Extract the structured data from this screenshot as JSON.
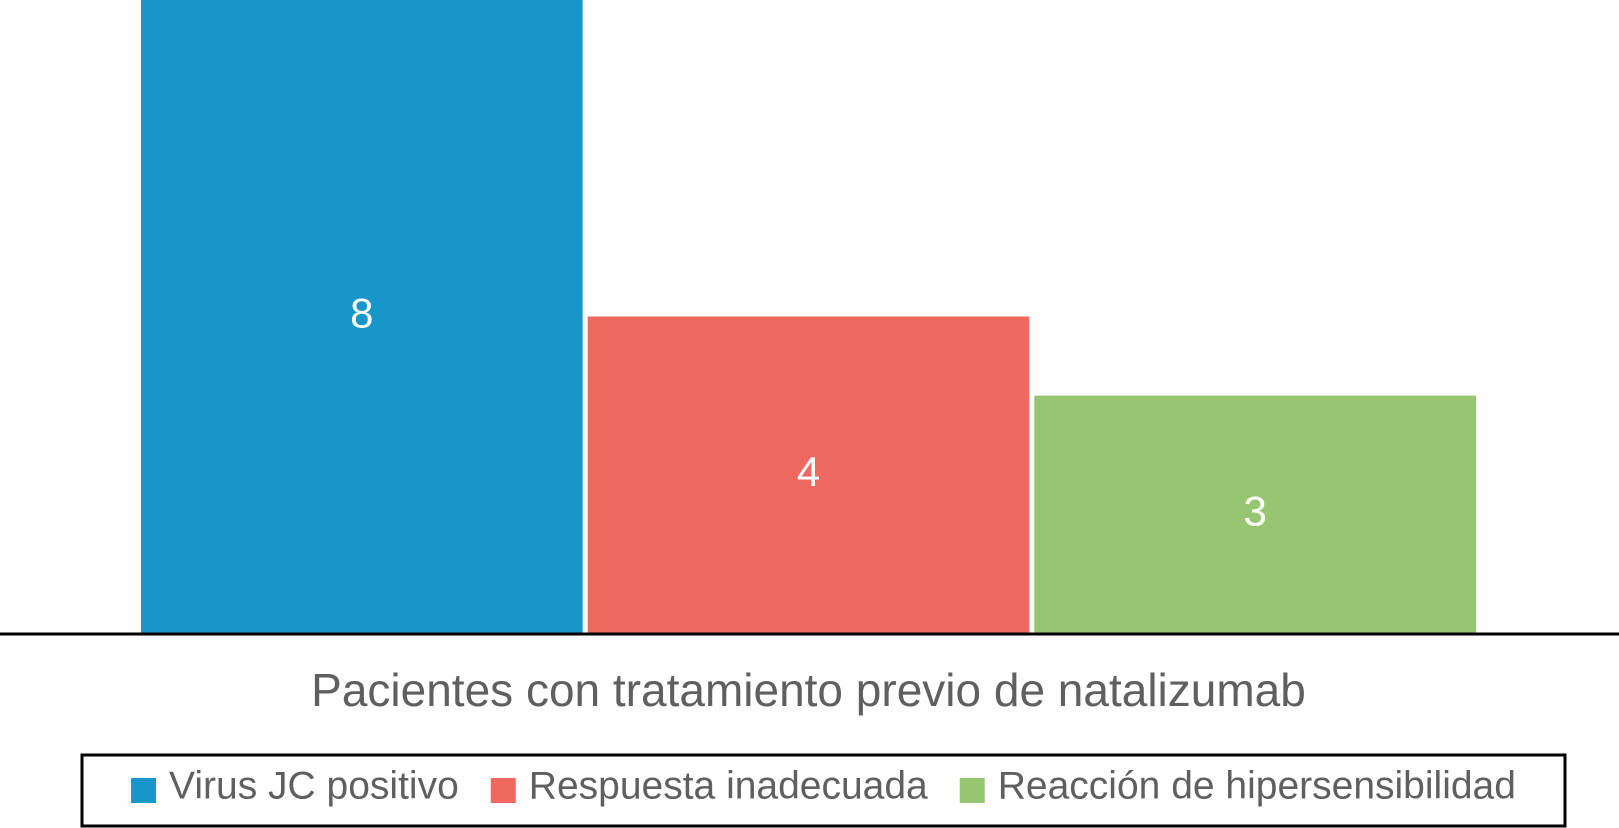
{
  "chart_data": {
    "type": "bar",
    "categories": [
      "Pacientes con tratamiento previo de natalizumab"
    ],
    "series": [
      {
        "name": "Virus JC positivo",
        "color": "#1797c9",
        "values": [
          8
        ]
      },
      {
        "name": "Respuesta inadecuada",
        "color": "#ef6961",
        "values": [
          4
        ]
      },
      {
        "name": "Reacción de hipersensibilidad",
        "color": "#97c672",
        "values": [
          3
        ]
      }
    ],
    "ylim": [
      0,
      8
    ],
    "legend": "bottom"
  }
}
